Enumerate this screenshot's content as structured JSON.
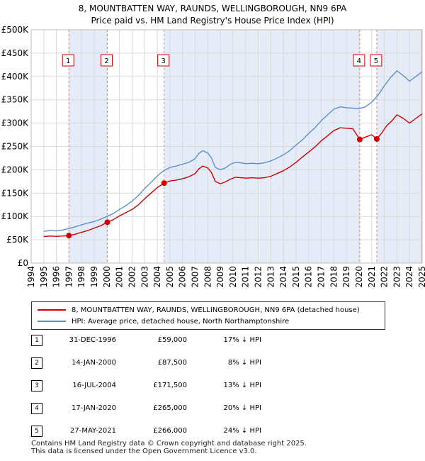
{
  "title_line1": "8, MOUNTBATTEN WAY, RAUNDS, WELLINGBOROUGH, NN9 6PA",
  "title_line2": "Price paid vs. HM Land Registry's House Price Index (HPI)",
  "colors": {
    "property": "#cc0000",
    "hpi": "#5b8fd0",
    "shade": "#e5ecf7",
    "vline": "#e08080"
  },
  "chart_data": {
    "type": "line",
    "xlim": [
      1994,
      2025
    ],
    "ylim": [
      0,
      500000
    ],
    "y_ticks": [
      0,
      50000,
      100000,
      150000,
      200000,
      250000,
      300000,
      350000,
      400000,
      450000,
      500000
    ],
    "y_tick_labels": [
      "£0",
      "£50K",
      "£100K",
      "£150K",
      "£200K",
      "£250K",
      "£300K",
      "£350K",
      "£400K",
      "£450K",
      "£500K"
    ],
    "x_ticks": [
      "1994",
      "1995",
      "1996",
      "1997",
      "1998",
      "1999",
      "2000",
      "2001",
      "2002",
      "2003",
      "2004",
      "2005",
      "2006",
      "2007",
      "2008",
      "2009",
      "2010",
      "2011",
      "2012",
      "2013",
      "2014",
      "2015",
      "2016",
      "2017",
      "2018",
      "2019",
      "2020",
      "2021",
      "2022",
      "2023",
      "2024",
      "2025"
    ],
    "data_range": [
      1995.0,
      2025.0
    ],
    "series": [
      {
        "name": "HPI: Average price, detached house, North Northamptonshire",
        "x": [
          1995.0,
          1995.5,
          1996.0,
          1996.5,
          1997.0,
          1997.5,
          1998.0,
          1998.5,
          1999.0,
          1999.5,
          2000.0,
          2000.5,
          2001.0,
          2001.5,
          2002.0,
          2002.5,
          2003.0,
          2003.5,
          2004.0,
          2004.5,
          2005.0,
          2005.5,
          2006.0,
          2006.5,
          2007.0,
          2007.3,
          2007.6,
          2008.0,
          2008.3,
          2008.6,
          2009.0,
          2009.4,
          2009.8,
          2010.2,
          2010.6,
          2011.0,
          2011.5,
          2012.0,
          2012.5,
          2013.0,
          2013.5,
          2014.0,
          2014.5,
          2015.0,
          2015.5,
          2016.0,
          2016.5,
          2017.0,
          2017.5,
          2018.0,
          2018.5,
          2019.0,
          2019.5,
          2020.0,
          2020.5,
          2021.0,
          2021.5,
          2022.0,
          2022.5,
          2023.0,
          2023.5,
          2024.0,
          2024.5,
          2025.0
        ],
        "values": [
          68000,
          70000,
          69000,
          71000,
          74000,
          78000,
          82000,
          86000,
          89000,
          94000,
          100000,
          106000,
          115000,
          123000,
          133000,
          145000,
          160000,
          173000,
          187000,
          198000,
          205000,
          208000,
          212000,
          216000,
          224000,
          235000,
          241000,
          236000,
          225000,
          205000,
          200000,
          204000,
          212000,
          216000,
          215000,
          213000,
          214000,
          213000,
          215000,
          219000,
          225000,
          232000,
          241000,
          253000,
          264000,
          278000,
          290000,
          305000,
          318000,
          330000,
          335000,
          333000,
          332000,
          331000,
          335000,
          345000,
          360000,
          380000,
          398000,
          412000,
          402000,
          390000,
          400000,
          410000
        ]
      },
      {
        "name": "8, MOUNTBATTEN WAY, RAUNDS, WELLINGBOROUGH, NN9 6PA (detached house)",
        "x": [
          1995.0,
          1995.5,
          1996.0,
          1996.5,
          1996.99,
          1997.5,
          1998.0,
          1998.5,
          1999.0,
          1999.5,
          2000.04,
          2000.5,
          2001.0,
          2001.5,
          2002.0,
          2002.5,
          2003.0,
          2003.5,
          2004.0,
          2004.54,
          2005.0,
          2005.5,
          2006.0,
          2006.5,
          2007.0,
          2007.3,
          2007.6,
          2008.0,
          2008.3,
          2008.6,
          2009.0,
          2009.4,
          2009.8,
          2010.2,
          2010.6,
          2011.0,
          2011.5,
          2012.0,
          2012.5,
          2013.0,
          2013.5,
          2014.0,
          2014.5,
          2015.0,
          2015.5,
          2016.0,
          2016.5,
          2017.0,
          2017.5,
          2018.0,
          2018.5,
          2019.0,
          2019.5,
          2020.05,
          2020.5,
          2021.0,
          2021.4,
          2021.8,
          2022.2,
          2022.6,
          2023.0,
          2023.5,
          2024.0,
          2024.5,
          2025.0
        ],
        "values": [
          57000,
          58000,
          57500,
          58000,
          59000,
          62000,
          66000,
          70000,
          75000,
          80000,
          87500,
          93000,
          101000,
          108000,
          115000,
          125000,
          138000,
          150000,
          162000,
          171500,
          176000,
          178000,
          181000,
          185000,
          192000,
          202000,
          208000,
          204000,
          194000,
          175000,
          170000,
          174000,
          180000,
          184000,
          183000,
          182000,
          183000,
          182000,
          183000,
          186000,
          192000,
          198000,
          206000,
          216000,
          227000,
          238000,
          249000,
          262000,
          273000,
          284000,
          290000,
          289000,
          288000,
          265000,
          270000,
          275000,
          266000,
          279000,
          295000,
          305000,
          318000,
          310000,
          300000,
          310000,
          320000
        ]
      }
    ],
    "transactions": [
      {
        "num": "1",
        "x": 1996.99,
        "value": 59000
      },
      {
        "num": "2",
        "x": 2000.04,
        "value": 87500
      },
      {
        "num": "3",
        "x": 2004.54,
        "value": 171500
      },
      {
        "num": "4",
        "x": 2020.05,
        "value": 265000
      },
      {
        "num": "5",
        "x": 2021.4,
        "value": 266000
      }
    ]
  },
  "legend": {
    "property_label": "8, MOUNTBATTEN WAY, RAUNDS, WELLINGBOROUGH, NN9 6PA (detached house)",
    "hpi_label": "HPI: Average price, detached house, North Northamptonshire"
  },
  "table": [
    {
      "num": "1",
      "date": "31-DEC-1996",
      "price": "£59,000",
      "hpi": "17% ↓ HPI"
    },
    {
      "num": "2",
      "date": "14-JAN-2000",
      "price": "£87,500",
      "hpi": "8% ↓ HPI"
    },
    {
      "num": "3",
      "date": "16-JUL-2004",
      "price": "£171,500",
      "hpi": "13% ↓ HPI"
    },
    {
      "num": "4",
      "date": "17-JAN-2020",
      "price": "£265,000",
      "hpi": "20% ↓ HPI"
    },
    {
      "num": "5",
      "date": "27-MAY-2021",
      "price": "£266,000",
      "hpi": "24% ↓ HPI"
    }
  ],
  "footer_line1": "Contains HM Land Registry data © Crown copyright and database right 2025.",
  "footer_line2": "This data is licensed under the Open Government Licence v3.0."
}
